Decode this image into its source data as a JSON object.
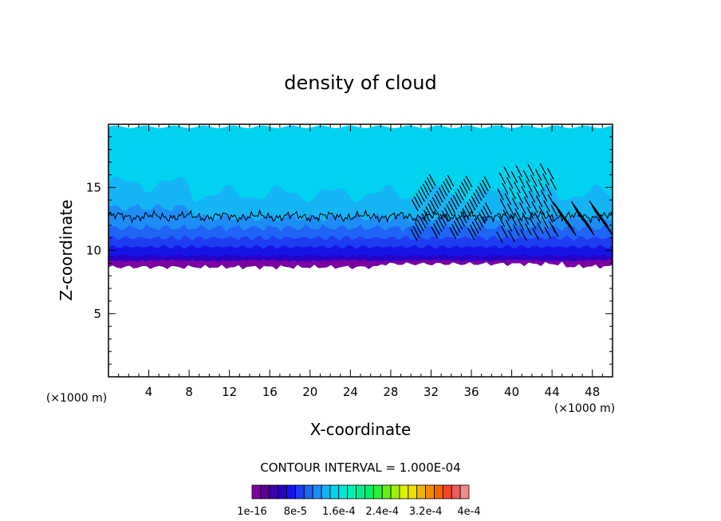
{
  "chart_data": {
    "type": "heatmap",
    "title": "density of cloud",
    "xlabel": "X-coordinate",
    "ylabel": "Z-coordinate",
    "x_unit": "(×1000 m)",
    "y_unit": "(×1000 m)",
    "xlim": [
      0,
      50
    ],
    "ylim": [
      0,
      20
    ],
    "x_ticks": [
      4,
      8,
      12,
      16,
      20,
      24,
      28,
      32,
      36,
      40,
      44,
      48
    ],
    "y_ticks": [
      5,
      10,
      15
    ],
    "contour_note": "CONTOUR INTERVAL = 1.000E-04",
    "colorbar_labels": [
      "1e-16",
      "8e-5",
      "1.6e-4",
      "2.4e-4",
      "3.2e-4",
      "4e-4"
    ],
    "colorbar_colors": [
      "#7f00a0",
      "#5a0090",
      "#3c00a8",
      "#2800c8",
      "#1414e6",
      "#1e3cf0",
      "#1e64f5",
      "#1e8cf5",
      "#14b4f5",
      "#00d2f0",
      "#00e6dc",
      "#00f0b4",
      "#00f08c",
      "#00f064",
      "#28f03c",
      "#64f014",
      "#a0f000",
      "#dcf000",
      "#f0dc00",
      "#f0b400",
      "#f08c00",
      "#f06400",
      "#f04628",
      "#f05a5a",
      "#f08c8c"
    ],
    "cloud_base_z": 8.7,
    "cloud_top_z": 19.8,
    "contour_z": 12.7
  }
}
